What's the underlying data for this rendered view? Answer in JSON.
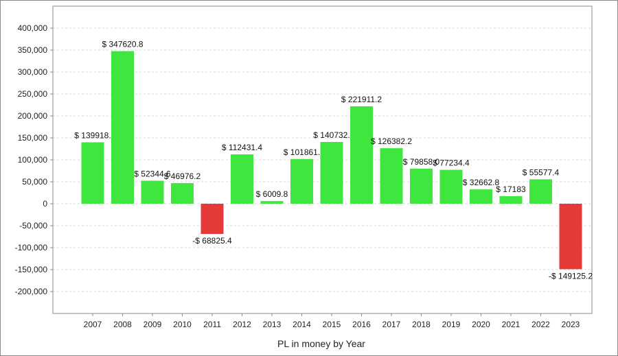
{
  "chart_data": {
    "type": "bar",
    "xlabel": "PL in money by Year",
    "ylabel": "",
    "ylim": [
      -250000,
      450000
    ],
    "y_ticks": [
      400000,
      350000,
      300000,
      250000,
      200000,
      150000,
      100000,
      50000,
      0,
      -50000,
      -100000,
      -150000,
      -200000
    ],
    "y_tick_labels": [
      "400,000",
      "350,000",
      "300,000",
      "250,000",
      "200,000",
      "150,000",
      "100,000",
      "50,000",
      "0",
      "-50,000",
      "-100,000",
      "-150,000",
      "-200,000"
    ],
    "grid": true,
    "categories": [
      "2007",
      "2008",
      "2009",
      "2010",
      "2011",
      "2012",
      "2013",
      "2014",
      "2015",
      "2016",
      "2017",
      "2018",
      "2019",
      "2020",
      "2021",
      "2022",
      "2023"
    ],
    "values": [
      139918,
      347620.8,
      52344.6,
      46976.2,
      -68825.4,
      112431.4,
      6009.8,
      101861,
      140732,
      221911.2,
      126382.2,
      79858,
      77234.4,
      32662.8,
      17183,
      55577.4,
      -149125.2
    ],
    "data_labels": [
      "$ 139918.",
      "$ 347620.8",
      "$ 52344.6",
      "$ 46976.2",
      "-$ 68825.4",
      "$ 112431.4",
      "$ 6009.8",
      "$ 101861.",
      "$ 140732.",
      "$ 221911.2",
      "$ 126382.2",
      "$ 79858.0",
      "$ 77234.4",
      "$ 32662.8",
      "$ 17183",
      "$ 55577.4",
      "-$ 149125.2"
    ],
    "colors": {
      "positive": "#3ee63e",
      "negative": "#e63a3a",
      "grid": "#d8d8d8",
      "axis": "#8a8a8a"
    }
  }
}
